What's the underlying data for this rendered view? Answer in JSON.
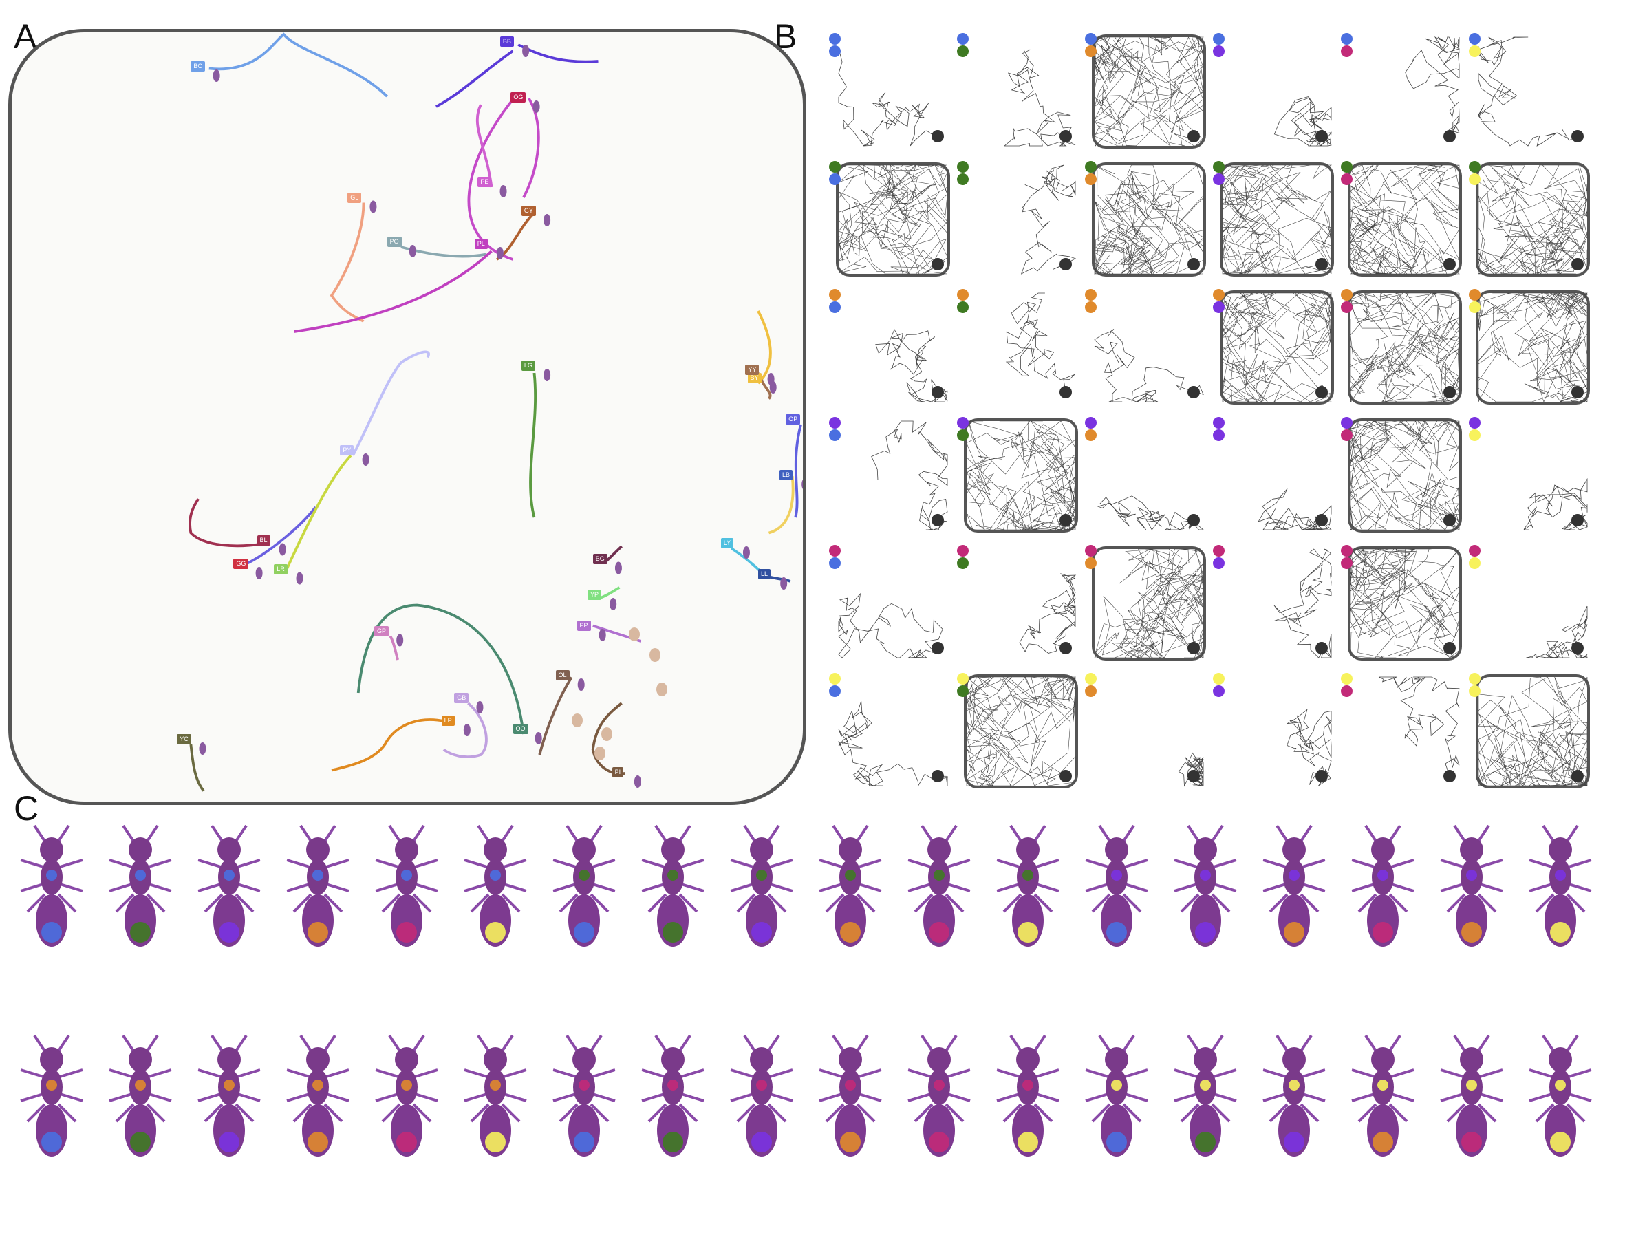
{
  "panels": {
    "a": "A",
    "b": "B",
    "c": "C"
  },
  "colors": {
    "blue": "#4a6fe0",
    "green": "#3f7a22",
    "orange": "#e08a2c",
    "purple": "#7a33e0",
    "magenta": "#c22a78",
    "yellow": "#f7f25c"
  },
  "panel_a": {
    "tags": [
      "BO",
      "BB",
      "OG",
      "PE",
      "GY",
      "GL",
      "PO",
      "PL",
      "LG",
      "PY",
      "BY",
      "YY",
      "OP",
      "LB",
      "LY",
      "LL",
      "BL",
      "GG",
      "LR",
      "BG",
      "YP",
      "PP",
      "GP",
      "OL",
      "LP",
      "GB",
      "OO",
      "YC",
      "PI"
    ]
  },
  "panel_b": {
    "pair_colors": [
      "blue",
      "green",
      "orange",
      "purple",
      "magenta",
      "yellow"
    ]
  },
  "panel_c": {
    "row1_markers": [
      [
        "blue",
        "blue"
      ],
      [
        "blue",
        "green"
      ],
      [
        "blue",
        "purple"
      ],
      [
        "blue",
        "orange"
      ],
      [
        "blue",
        "magenta"
      ],
      [
        "blue",
        "yellow"
      ],
      [
        "green",
        "blue"
      ],
      [
        "green",
        "green"
      ],
      [
        "green",
        "purple"
      ],
      [
        "green",
        "orange"
      ],
      [
        "green",
        "magenta"
      ],
      [
        "green",
        "yellow"
      ],
      [
        "purple",
        "blue"
      ],
      [
        "purple",
        "purple"
      ],
      [
        "purple",
        "orange"
      ],
      [
        "purple",
        "magenta"
      ],
      [
        "purple",
        "orange"
      ],
      [
        "purple",
        "yellow"
      ]
    ],
    "row2_markers": [
      [
        "orange",
        "blue"
      ],
      [
        "orange",
        "green"
      ],
      [
        "orange",
        "purple"
      ],
      [
        "orange",
        "orange"
      ],
      [
        "orange",
        "magenta"
      ],
      [
        "orange",
        "yellow"
      ],
      [
        "magenta",
        "blue"
      ],
      [
        "magenta",
        "green"
      ],
      [
        "magenta",
        "purple"
      ],
      [
        "magenta",
        "orange"
      ],
      [
        "magenta",
        "magenta"
      ],
      [
        "magenta",
        "yellow"
      ],
      [
        "yellow",
        "blue"
      ],
      [
        "yellow",
        "green"
      ],
      [
        "yellow",
        "purple"
      ],
      [
        "yellow",
        "orange"
      ],
      [
        "yellow",
        "magenta"
      ],
      [
        "yellow",
        "yellow"
      ]
    ]
  }
}
